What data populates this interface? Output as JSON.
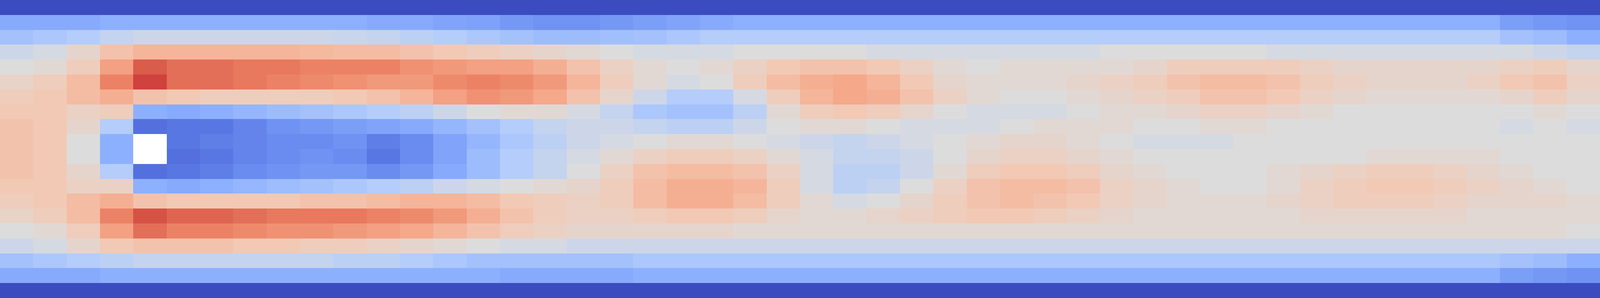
{
  "chart_data": {
    "type": "heatmap",
    "tick_labels": false,
    "zlim": [
      0,
      100
    ],
    "cells": [
      [
        0,
        0,
        0,
        0,
        0,
        0,
        0,
        0,
        0,
        0,
        0,
        0,
        0,
        0,
        0,
        0,
        0,
        0,
        0,
        0,
        0,
        0,
        0,
        0,
        0,
        0,
        0,
        0,
        0,
        0,
        0,
        0,
        0,
        0,
        0,
        0,
        0,
        0,
        0,
        0,
        0,
        0,
        0,
        0,
        0,
        0,
        0,
        0
      ],
      [
        28,
        28,
        28,
        30,
        30,
        30,
        30,
        30,
        30,
        30,
        30,
        28,
        28,
        26,
        25,
        22,
        20,
        20,
        22,
        24,
        26,
        28,
        30,
        30,
        30,
        30,
        30,
        30,
        30,
        30,
        30,
        30,
        30,
        30,
        30,
        30,
        30,
        30,
        30,
        30,
        30,
        30,
        30,
        30,
        30,
        24,
        22,
        20
      ],
      [
        36,
        38,
        40,
        44,
        46,
        46,
        46,
        46,
        46,
        46,
        45,
        44,
        42,
        40,
        38,
        36,
        34,
        34,
        35,
        36,
        38,
        40,
        40,
        40,
        40,
        40,
        40,
        40,
        40,
        40,
        40,
        40,
        40,
        40,
        40,
        40,
        40,
        40,
        40,
        40,
        40,
        40,
        40,
        40,
        40,
        36,
        34,
        30
      ],
      [
        46,
        48,
        54,
        62,
        66,
        66,
        66,
        66,
        66,
        65,
        64,
        64,
        62,
        60,
        58,
        56,
        54,
        52,
        50,
        48,
        48,
        48,
        50,
        50,
        50,
        50,
        48,
        48,
        48,
        48,
        48,
        48,
        48,
        50,
        50,
        50,
        50,
        50,
        48,
        48,
        48,
        48,
        48,
        48,
        48,
        48,
        46,
        44
      ],
      [
        50,
        52,
        58,
        72,
        88,
        84,
        84,
        82,
        82,
        80,
        80,
        80,
        76,
        74,
        72,
        72,
        68,
        62,
        56,
        52,
        50,
        52,
        56,
        60,
        62,
        62,
        60,
        56,
        52,
        50,
        52,
        52,
        52,
        52,
        54,
        58,
        58,
        58,
        58,
        56,
        54,
        54,
        54,
        54,
        54,
        56,
        58,
        54
      ],
      [
        55,
        58,
        64,
        80,
        92,
        84,
        84,
        82,
        80,
        78,
        76,
        74,
        74,
        78,
        80,
        78,
        74,
        66,
        58,
        52,
        48,
        50,
        58,
        64,
        68,
        70,
        66,
        60,
        54,
        52,
        52,
        52,
        54,
        56,
        58,
        62,
        64,
        64,
        62,
        58,
        56,
        54,
        54,
        54,
        56,
        60,
        62,
        56
      ],
      [
        58,
        60,
        64,
        68,
        62,
        60,
        58,
        58,
        58,
        58,
        60,
        62,
        66,
        72,
        76,
        74,
        70,
        62,
        54,
        46,
        40,
        40,
        48,
        58,
        66,
        70,
        68,
        62,
        56,
        52,
        50,
        50,
        52,
        54,
        56,
        58,
        62,
        62,
        60,
        56,
        54,
        52,
        52,
        52,
        52,
        54,
        58,
        54
      ],
      [
        60,
        60,
        56,
        58,
        30,
        28,
        30,
        32,
        34,
        36,
        38,
        40,
        42,
        46,
        50,
        52,
        52,
        48,
        44,
        38,
        36,
        36,
        42,
        52,
        58,
        60,
        58,
        54,
        50,
        48,
        48,
        48,
        50,
        52,
        52,
        54,
        56,
        56,
        54,
        52,
        50,
        50,
        50,
        50,
        50,
        50,
        52,
        50
      ],
      [
        62,
        60,
        54,
        40,
        10,
        12,
        12,
        16,
        20,
        22,
        24,
        26,
        28,
        32,
        36,
        40,
        44,
        46,
        46,
        44,
        42,
        42,
        46,
        50,
        52,
        52,
        50,
        48,
        48,
        48,
        50,
        52,
        52,
        52,
        50,
        50,
        52,
        52,
        50,
        50,
        50,
        50,
        50,
        50,
        50,
        48,
        50,
        48
      ],
      [
        62,
        60,
        50,
        30,
        null,
        12,
        14,
        16,
        18,
        18,
        20,
        14,
        18,
        26,
        32,
        38,
        42,
        46,
        48,
        50,
        52,
        52,
        50,
        48,
        46,
        44,
        46,
        48,
        50,
        52,
        54,
        54,
        52,
        50,
        48,
        48,
        48,
        50,
        50,
        50,
        50,
        50,
        50,
        50,
        50,
        50,
        50,
        50
      ],
      [
        62,
        60,
        50,
        30,
        null,
        10,
        12,
        16,
        18,
        20,
        18,
        12,
        18,
        26,
        34,
        40,
        44,
        48,
        52,
        56,
        58,
        58,
        56,
        52,
        48,
        44,
        44,
        46,
        50,
        54,
        56,
        56,
        54,
        52,
        50,
        50,
        50,
        50,
        50,
        50,
        50,
        52,
        52,
        52,
        52,
        50,
        50,
        50
      ],
      [
        62,
        60,
        54,
        40,
        10,
        12,
        14,
        18,
        20,
        22,
        22,
        18,
        22,
        28,
        34,
        40,
        44,
        50,
        56,
        62,
        64,
        64,
        62,
        56,
        48,
        42,
        42,
        46,
        52,
        58,
        60,
        60,
        58,
        54,
        52,
        50,
        50,
        50,
        52,
        54,
        56,
        58,
        58,
        56,
        54,
        52,
        50,
        50
      ],
      [
        60,
        60,
        56,
        56,
        30,
        28,
        30,
        32,
        34,
        36,
        38,
        40,
        42,
        46,
        48,
        50,
        52,
        54,
        58,
        64,
        68,
        68,
        66,
        58,
        48,
        42,
        44,
        50,
        56,
        62,
        64,
        64,
        62,
        56,
        54,
        52,
        50,
        50,
        52,
        56,
        58,
        60,
        60,
        58,
        56,
        54,
        52,
        50
      ],
      [
        58,
        60,
        64,
        68,
        62,
        60,
        60,
        60,
        60,
        62,
        62,
        64,
        66,
        66,
        64,
        60,
        58,
        56,
        58,
        64,
        68,
        68,
        64,
        58,
        52,
        48,
        50,
        54,
        58,
        62,
        64,
        62,
        60,
        56,
        54,
        52,
        52,
        52,
        54,
        56,
        58,
        58,
        58,
        56,
        54,
        54,
        54,
        52
      ],
      [
        55,
        58,
        64,
        80,
        90,
        86,
        86,
        84,
        82,
        82,
        82,
        80,
        78,
        74,
        68,
        62,
        58,
        56,
        56,
        58,
        60,
        60,
        58,
        54,
        52,
        52,
        54,
        56,
        58,
        60,
        60,
        58,
        56,
        54,
        52,
        52,
        52,
        52,
        52,
        54,
        54,
        54,
        54,
        54,
        52,
        52,
        52,
        52
      ],
      [
        50,
        52,
        58,
        72,
        84,
        80,
        80,
        78,
        76,
        76,
        74,
        72,
        70,
        66,
        62,
        58,
        56,
        54,
        54,
        54,
        54,
        54,
        52,
        52,
        52,
        52,
        52,
        52,
        52,
        52,
        52,
        52,
        52,
        52,
        52,
        52,
        52,
        52,
        52,
        52,
        52,
        52,
        52,
        52,
        52,
        52,
        52,
        50
      ],
      [
        46,
        48,
        54,
        60,
        62,
        62,
        62,
        60,
        60,
        58,
        58,
        56,
        54,
        52,
        50,
        48,
        48,
        46,
        46,
        46,
        46,
        46,
        46,
        46,
        46,
        46,
        46,
        46,
        46,
        46,
        46,
        46,
        46,
        46,
        46,
        46,
        46,
        46,
        46,
        46,
        46,
        46,
        46,
        46,
        46,
        46,
        46,
        46
      ],
      [
        36,
        38,
        40,
        42,
        44,
        44,
        44,
        44,
        44,
        44,
        42,
        42,
        40,
        38,
        36,
        36,
        36,
        36,
        36,
        38,
        38,
        38,
        38,
        38,
        38,
        38,
        38,
        38,
        38,
        38,
        38,
        38,
        38,
        38,
        38,
        38,
        38,
        38,
        38,
        38,
        38,
        38,
        38,
        38,
        38,
        36,
        34,
        30
      ],
      [
        28,
        28,
        28,
        30,
        30,
        30,
        30,
        30,
        30,
        30,
        30,
        30,
        30,
        30,
        30,
        28,
        28,
        28,
        28,
        30,
        30,
        30,
        30,
        30,
        30,
        30,
        30,
        30,
        30,
        30,
        30,
        30,
        30,
        30,
        30,
        30,
        30,
        30,
        30,
        30,
        30,
        30,
        30,
        30,
        30,
        24,
        22,
        20
      ],
      [
        0,
        0,
        0,
        0,
        0,
        0,
        0,
        0,
        0,
        0,
        0,
        0,
        0,
        0,
        0,
        0,
        0,
        0,
        0,
        0,
        0,
        0,
        0,
        0,
        0,
        0,
        0,
        0,
        0,
        0,
        0,
        0,
        0,
        0,
        0,
        0,
        0,
        0,
        0,
        0,
        0,
        0,
        0,
        0,
        0,
        0,
        0,
        0
      ]
    ]
  }
}
